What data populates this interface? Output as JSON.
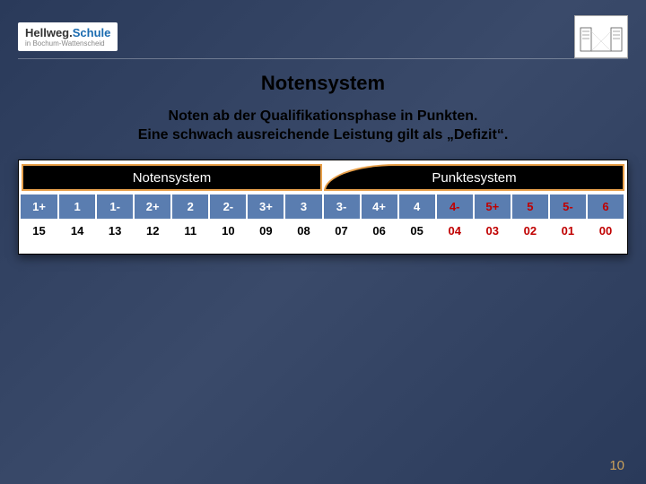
{
  "logo": {
    "part1": "Hellweg.",
    "part2": "Schule",
    "sub": "in Bochum-Wattenscheid"
  },
  "title": "Notensystem",
  "subtitle_line1": "Noten ab der Qualifikationsphase in Punkten.",
  "subtitle_line2": "Eine schwach ausreichende Leistung gilt als „Defizit“.",
  "header_left": "Notensystem",
  "header_right": "Punktesystem",
  "rows": {
    "noten": [
      "1+",
      "1",
      "1-",
      "2+",
      "2",
      "2-",
      "3+",
      "3",
      "3-",
      "4+",
      "4",
      "4-",
      "5+",
      "5",
      "5-",
      "6"
    ],
    "punkte": [
      "15",
      "14",
      "13",
      "12",
      "11",
      "10",
      "09",
      "08",
      "07",
      "06",
      "05",
      "04",
      "03",
      "02",
      "01",
      "00"
    ]
  },
  "deficit_start_index": 11,
  "colors": {
    "noten_bg": "#5a7db0",
    "deficit_text": "#c00000",
    "header_border": "#e8a04a"
  },
  "page_number": "10"
}
